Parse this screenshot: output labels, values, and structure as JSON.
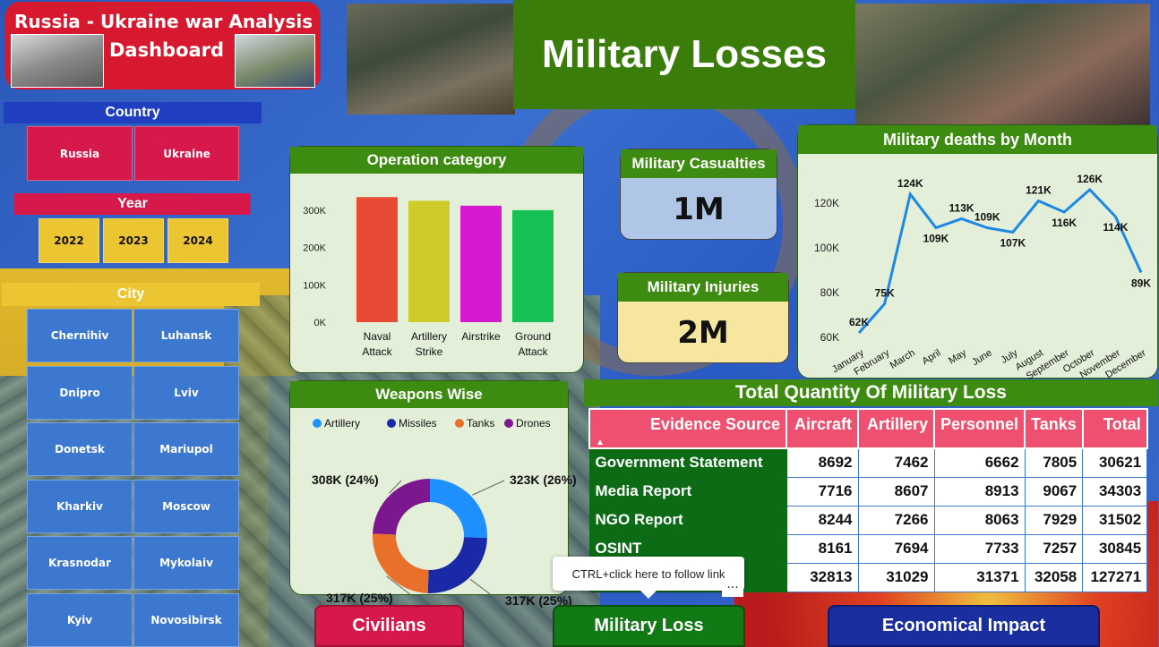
{
  "title": {
    "line1": "Russia - Ukraine war Analysis",
    "line2": "Dashboard"
  },
  "header": {
    "title": "Military Losses"
  },
  "country": {
    "label": "Country",
    "options": [
      "Russia",
      "Ukraine"
    ]
  },
  "year": {
    "label": "Year",
    "options": [
      "2022",
      "2023",
      "2024"
    ]
  },
  "city": {
    "label": "City",
    "options": [
      "Chernihiv",
      "Luhansk",
      "Dnipro",
      "Lviv",
      "Donetsk",
      "Mariupol",
      "Kharkiv",
      "Moscow",
      "Krasnodar",
      "Mykolaiv",
      "Kyiv",
      "Novosibirsk"
    ]
  },
  "kpis": {
    "casualties": {
      "label": "Military Casualties",
      "value": "1M"
    },
    "injuries": {
      "label": "Military Injuries",
      "value": "2M"
    }
  },
  "operation_chart": {
    "title": "Operation category"
  },
  "monthly_chart": {
    "title": "Military deaths by Month"
  },
  "weapons_chart": {
    "title": "Weapons Wise"
  },
  "chart_data": [
    {
      "type": "bar",
      "title": "Operation category",
      "categories": [
        "Naval Attack",
        "Artillery Strike",
        "Airstrike",
        "Ground Attack"
      ],
      "values": [
        335000,
        325000,
        312000,
        300000
      ],
      "colors": [
        "#e84a35",
        "#cdcc2a",
        "#d61ad0",
        "#16c055"
      ],
      "yticks": [
        "0K",
        "100K",
        "200K",
        "300K"
      ],
      "ylim": [
        0,
        350000
      ]
    },
    {
      "type": "line",
      "title": "Military deaths by Month",
      "x": [
        "January",
        "February",
        "March",
        "April",
        "May",
        "June",
        "July",
        "August",
        "September",
        "October",
        "November",
        "December"
      ],
      "y": [
        62000,
        75000,
        124000,
        109000,
        113000,
        109000,
        107000,
        121000,
        116000,
        126000,
        114000,
        89000
      ],
      "labels": [
        "62K",
        "75K",
        "124K",
        "109K",
        "113K",
        "109K",
        "107K",
        "121K",
        "116K",
        "126K",
        "114K",
        "89K"
      ],
      "yticks": [
        "60K",
        "80K",
        "100K",
        "120K"
      ],
      "ylim": [
        58000,
        130000
      ],
      "color": "#1e88e5"
    },
    {
      "type": "pie",
      "title": "Weapons Wise",
      "legend": [
        "Artillery",
        "Missiles",
        "Tanks",
        "Drones"
      ],
      "values": [
        323000,
        317000,
        317000,
        308000
      ],
      "labels": [
        "323K (26%)",
        "317K (25%)",
        "317K (25%)",
        "308K (24%)"
      ],
      "colors": [
        "#1e90ff",
        "#1a2aa6",
        "#e8702a",
        "#7d178f"
      ]
    }
  ],
  "loss_table": {
    "title": "Total Quantity Of Military Loss",
    "columns": [
      "Evidence Source",
      "Aircraft",
      "Artillery",
      "Personnel",
      "Tanks",
      "Total"
    ],
    "rows": [
      [
        "Government Statement",
        "8692",
        "7462",
        "6662",
        "7805",
        "30621"
      ],
      [
        "Media Report",
        "7716",
        "8607",
        "8913",
        "9067",
        "34303"
      ],
      [
        "NGO Report",
        "8244",
        "7266",
        "8063",
        "7929",
        "31502"
      ],
      [
        "OSINT",
        "8161",
        "7694",
        "7733",
        "7257",
        "30845"
      ],
      [
        "",
        "32813",
        "31029",
        "31371",
        "32058",
        "127271"
      ]
    ]
  },
  "tooltip": "CTRL+click here to follow link",
  "more_glyph": "···",
  "nav": {
    "civilians": "Civilians",
    "military": "Military Loss",
    "economic": "Economical Impact"
  }
}
